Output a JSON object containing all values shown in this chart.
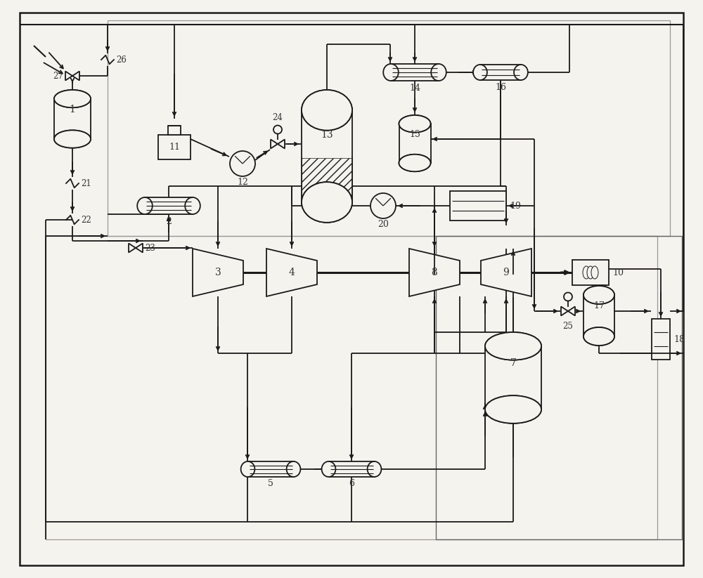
{
  "fig_w": 10.0,
  "fig_h": 8.23,
  "dpi": 100,
  "lc": "#1a1a1a",
  "lw": 1.3,
  "bg": "#f5f3ee"
}
